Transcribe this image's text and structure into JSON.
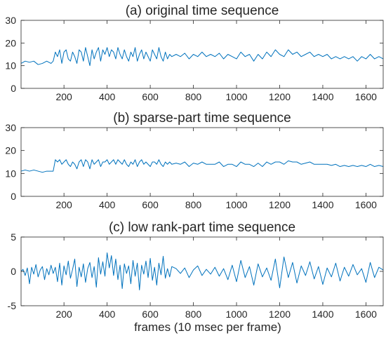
{
  "colors": {
    "line": "#0072bd",
    "axes": "#262626",
    "background": "#ffffff"
  },
  "xlabel": "frames (10 msec per frame)",
  "chart_data": [
    {
      "type": "line",
      "title": "(a) original time sequence",
      "xlim": [
        1,
        1680
      ],
      "ylim": [
        0,
        30
      ],
      "xticks": [
        200,
        400,
        600,
        800,
        1000,
        1200,
        1400,
        1600
      ],
      "yticks": [
        0,
        10,
        20,
        30
      ],
      "grid": false,
      "series": [
        {
          "x": [
            1,
            20,
            40,
            60,
            80,
            100,
            120,
            140,
            150,
            160,
            170,
            180,
            190,
            200,
            210,
            220,
            230,
            240,
            250,
            260,
            270,
            280,
            290,
            300,
            310,
            320,
            330,
            340,
            350,
            360,
            370,
            380,
            390,
            400,
            410,
            420,
            430,
            440,
            450,
            460,
            470,
            480,
            490,
            500,
            510,
            520,
            530,
            540,
            550,
            560,
            570,
            580,
            590,
            600,
            610,
            620,
            630,
            640,
            650,
            660,
            670,
            680,
            690,
            700,
            720,
            740,
            760,
            780,
            800,
            820,
            840,
            860,
            880,
            900,
            920,
            940,
            960,
            980,
            1000,
            1020,
            1040,
            1060,
            1080,
            1100,
            1120,
            1140,
            1160,
            1180,
            1200,
            1220,
            1240,
            1260,
            1280,
            1300,
            1320,
            1340,
            1360,
            1380,
            1400,
            1420,
            1440,
            1460,
            1480,
            1500,
            1520,
            1540,
            1560,
            1580,
            1600,
            1620,
            1640,
            1660,
            1680
          ],
          "y": [
            11,
            12,
            11.5,
            12,
            10.5,
            11,
            12,
            11,
            12,
            16,
            14,
            17,
            11,
            16,
            17,
            13,
            12,
            16,
            14,
            11,
            17,
            16,
            12,
            18,
            14,
            10,
            17,
            13,
            16,
            18,
            12,
            17,
            15,
            18,
            14,
            17,
            16,
            13,
            18,
            15,
            13,
            17,
            14,
            12,
            16,
            14,
            18,
            12,
            15,
            17,
            13,
            16,
            14,
            12,
            17,
            15,
            13,
            18,
            14,
            12,
            16,
            13,
            15,
            14,
            15,
            14,
            15.5,
            13,
            15,
            14,
            16,
            14,
            15,
            14,
            15.5,
            13,
            15,
            14,
            13,
            16,
            14,
            15,
            12,
            15,
            13,
            16,
            14,
            17,
            15,
            14,
            17,
            15,
            16,
            14,
            15,
            16,
            14,
            15,
            14,
            15,
            13,
            14,
            13,
            14,
            13,
            14,
            12,
            14,
            13,
            15,
            13,
            14,
            13
          ]
        }
      ]
    },
    {
      "type": "line",
      "title": "(b) sparse-part time sequence",
      "xlim": [
        1,
        1680
      ],
      "ylim": [
        0,
        30
      ],
      "xticks": [
        200,
        400,
        600,
        800,
        1000,
        1200,
        1400,
        1600
      ],
      "yticks": [
        0,
        10,
        20,
        30
      ],
      "grid": false,
      "series": [
        {
          "x": [
            1,
            20,
            40,
            60,
            80,
            100,
            120,
            140,
            150,
            160,
            170,
            180,
            190,
            200,
            210,
            220,
            230,
            240,
            250,
            260,
            270,
            280,
            290,
            300,
            310,
            320,
            330,
            340,
            350,
            360,
            370,
            380,
            390,
            400,
            410,
            420,
            430,
            440,
            450,
            460,
            470,
            480,
            490,
            500,
            510,
            520,
            530,
            540,
            550,
            560,
            570,
            580,
            590,
            600,
            610,
            620,
            630,
            640,
            650,
            660,
            670,
            680,
            690,
            700,
            720,
            740,
            760,
            780,
            800,
            820,
            840,
            860,
            880,
            900,
            920,
            940,
            960,
            980,
            1000,
            1020,
            1040,
            1060,
            1080,
            1100,
            1120,
            1140,
            1160,
            1180,
            1200,
            1220,
            1240,
            1260,
            1280,
            1300,
            1320,
            1340,
            1360,
            1380,
            1400,
            1420,
            1440,
            1460,
            1480,
            1500,
            1520,
            1540,
            1560,
            1580,
            1600,
            1620,
            1640,
            1660,
            1680
          ],
          "y": [
            11,
            11.5,
            11,
            11.5,
            11,
            10.5,
            11,
            11,
            11,
            16,
            15,
            16,
            14,
            15,
            16,
            14,
            13,
            15,
            14,
            12,
            15,
            16,
            13,
            16,
            15,
            12,
            16,
            14,
            15,
            16,
            13,
            15,
            15,
            16,
            14,
            15,
            16,
            14,
            16,
            15,
            14,
            16,
            14,
            13,
            15,
            14,
            16,
            13,
            15,
            16,
            14,
            15,
            14,
            13,
            15,
            15,
            14,
            16,
            14,
            13,
            15,
            14,
            15,
            14,
            14.5,
            14,
            15,
            13,
            14.5,
            14,
            15,
            14,
            14,
            14,
            15,
            13,
            14,
            14,
            13,
            15,
            14,
            14,
            13,
            14.5,
            13,
            15,
            14,
            15,
            15,
            14,
            15.5,
            15,
            15,
            14,
            14.5,
            15,
            14,
            14,
            14,
            14,
            13.5,
            14,
            13,
            13.5,
            13,
            13.5,
            13,
            13.5,
            13,
            14,
            13,
            13.5,
            13
          ]
        }
      ]
    },
    {
      "type": "line",
      "title": "(c) low rank-part time sequence",
      "xlim": [
        1,
        1680
      ],
      "ylim": [
        -5,
        5
      ],
      "xticks": [
        200,
        400,
        600,
        800,
        1000,
        1200,
        1400,
        1600
      ],
      "yticks": [
        -5,
        0,
        5
      ],
      "grid": false,
      "series": [
        {
          "x": [
            1,
            10,
            20,
            30,
            40,
            50,
            60,
            70,
            80,
            90,
            100,
            110,
            120,
            130,
            140,
            150,
            160,
            170,
            180,
            190,
            200,
            210,
            220,
            230,
            240,
            250,
            260,
            270,
            280,
            290,
            300,
            310,
            320,
            330,
            340,
            350,
            360,
            370,
            380,
            390,
            400,
            410,
            420,
            430,
            440,
            450,
            460,
            470,
            480,
            490,
            500,
            510,
            520,
            530,
            540,
            550,
            560,
            570,
            580,
            590,
            600,
            610,
            620,
            630,
            640,
            650,
            660,
            670,
            680,
            690,
            700,
            720,
            740,
            760,
            780,
            800,
            820,
            840,
            860,
            880,
            900,
            920,
            940,
            960,
            980,
            1000,
            1020,
            1040,
            1060,
            1080,
            1100,
            1120,
            1140,
            1160,
            1180,
            1200,
            1220,
            1240,
            1260,
            1280,
            1300,
            1320,
            1340,
            1360,
            1380,
            1400,
            1420,
            1440,
            1460,
            1480,
            1500,
            1520,
            1540,
            1560,
            1580,
            1600,
            1620,
            1640,
            1660,
            1680
          ],
          "y": [
            0,
            0.3,
            -0.6,
            0.5,
            -1.8,
            0.6,
            -0.4,
            1,
            -0.8,
            0.2,
            0.7,
            -1.2,
            0.4,
            -0.5,
            0.9,
            -0.3,
            0.6,
            -1.5,
            1.2,
            -2,
            0.8,
            -0.5,
            1.5,
            -1,
            0.3,
            1.8,
            -2.2,
            0.6,
            -0.8,
            1.1,
            -1.6,
            0.4,
            1.3,
            -0.9,
            0.7,
            -2.3,
            2,
            -0.4,
            1.4,
            -0.7,
            2.7,
            0.5,
            2.3,
            -0.6,
            1.8,
            -1.2,
            0.9,
            -2.5,
            1.1,
            -0.3,
            0.8,
            -1.8,
            1.6,
            -0.7,
            1.2,
            -2.7,
            0.9,
            -0.4,
            1.5,
            -0.9,
            1.9,
            -1.3,
            0.6,
            -2,
            1.2,
            -0.5,
            2.2,
            -1,
            0.4,
            -0.8,
            0.7,
            0.4,
            -0.3,
            0.5,
            -0.9,
            0.2,
            0.8,
            -0.6,
            0.3,
            -0.4,
            0.6,
            -0.7,
            0.4,
            -1.2,
            0.9,
            -1.5,
            1.6,
            -0.9,
            0.7,
            -2,
            1.1,
            -0.8,
            0.5,
            -1.3,
            1.8,
            -2.4,
            2.1,
            -0.9,
            1.3,
            -1.7,
            0.8,
            -0.6,
            1.4,
            -1.1,
            0.7,
            -1.9,
            0.5,
            -0.8,
            1.2,
            -1.4,
            0.6,
            -0.7,
            1,
            -0.5,
            0.4,
            -1.6,
            1.3,
            -0.9,
            0.6,
            0.2
          ]
        }
      ]
    }
  ]
}
